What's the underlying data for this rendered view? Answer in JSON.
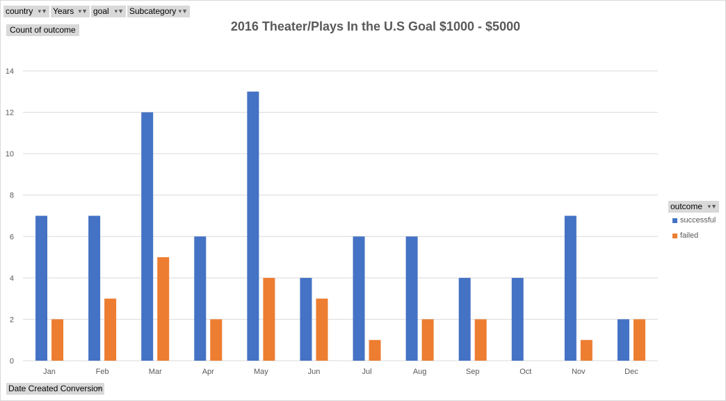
{
  "filters": {
    "country": "country",
    "years": "Years",
    "goal": "goal",
    "subcategory": "Subcategory"
  },
  "value_field": "Count of outcome",
  "axis_field": "Date Created Conversion",
  "legend": {
    "field": "outcome",
    "items": [
      "successful",
      "failed"
    ]
  },
  "colors": {
    "successful": "#4472C4",
    "failed": "#ED7D31",
    "grid": "#d9d9d9"
  },
  "chart_data": {
    "type": "bar",
    "title": "2016  Theater/Plays In the U.S Goal $1000 - $5000",
    "categories": [
      "Jan",
      "Feb",
      "Mar",
      "Apr",
      "May",
      "Jun",
      "Jul",
      "Aug",
      "Sep",
      "Oct",
      "Nov",
      "Dec"
    ],
    "series": [
      {
        "name": "successful",
        "values": [
          7,
          7,
          12,
          6,
          13,
          4,
          6,
          6,
          4,
          4,
          7,
          2
        ]
      },
      {
        "name": "failed",
        "values": [
          2,
          3,
          5,
          2,
          4,
          3,
          1,
          2,
          2,
          0,
          1,
          2
        ]
      }
    ],
    "ylim": [
      0,
      14
    ],
    "yticks": [
      "0",
      "2",
      "4",
      "6",
      "8",
      "10",
      "12",
      "14"
    ],
    "grid": true,
    "legend_position": "right"
  }
}
